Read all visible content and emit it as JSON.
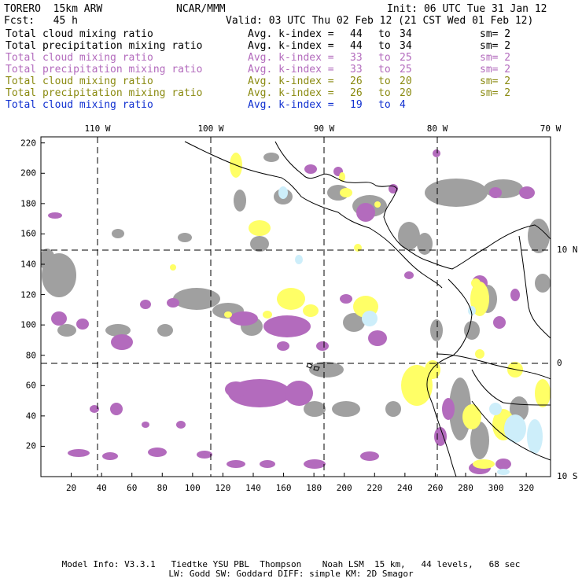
{
  "header": {
    "model": "TORERO  15km ARW",
    "center": "NCAR/MMM",
    "init": "Init: 06 UTC Tue 31 Jan 12",
    "fcst": "Fcst:   45 h",
    "valid": "Valid: 03 UTC Thu 02 Feb 12 (21 CST Wed 01 Feb 12)"
  },
  "legend": [
    {
      "field": "Total cloud mixing ratio",
      "avg": "Avg. k-index =",
      "from": "44",
      "to": "to",
      "end": "34",
      "sm": "sm= 2",
      "color": "#000000"
    },
    {
      "field": "Total precipitation mixing ratio",
      "avg": "Avg. k-index =",
      "from": "44",
      "to": "to",
      "end": "34",
      "sm": "sm= 2",
      "color": "#000000"
    },
    {
      "field": "Total cloud mixing ratio",
      "avg": "Avg. k-index =",
      "from": "33",
      "to": "to",
      "end": "25",
      "sm": "sm= 2",
      "color": "#b36bbd"
    },
    {
      "field": "Total precipitation mixing ratio",
      "avg": "Avg. k-index =",
      "from": "33",
      "to": "to",
      "end": "25",
      "sm": "sm= 2",
      "color": "#b36bbd"
    },
    {
      "field": "Total cloud mixing ratio",
      "avg": "Avg. k-index =",
      "from": "26",
      "to": "to",
      "end": "20",
      "sm": "sm= 2",
      "color": "#8a8a10"
    },
    {
      "field": "Total precipitation mixing ratio",
      "avg": "Avg. k-index =",
      "from": "26",
      "to": "to",
      "end": "20",
      "sm": "sm= 2",
      "color": "#8a8a10"
    },
    {
      "field": "Total cloud mixing ratio",
      "avg": "Avg. k-index =",
      "from": "19",
      "to": "to",
      "end": "4",
      "sm": "",
      "color": "#1030d0"
    }
  ],
  "axes": {
    "lon_labels": [
      "110 W",
      "100 W",
      "90 W",
      "80 W",
      "70 W"
    ],
    "lat_labels": [
      "10 N",
      "0",
      "10 S"
    ],
    "x_ticks": [
      "20",
      "40",
      "60",
      "80",
      "100",
      "120",
      "140",
      "160",
      "180",
      "200",
      "220",
      "240",
      "260",
      "280",
      "300",
      "320"
    ],
    "y_ticks": [
      "20",
      "40",
      "60",
      "80",
      "100",
      "120",
      "140",
      "160",
      "180",
      "200",
      "220"
    ],
    "grid_range_x": [
      0,
      336
    ],
    "grid_range_y": [
      0,
      224
    ]
  },
  "colors": {
    "gray": "#a0a0a0",
    "purple": "#b36bbd",
    "yellow": "#ffff66",
    "lightblue": "#cdeefa",
    "coast": "#000000"
  },
  "footer": {
    "line1": "Model Info: V3.3.1   Tiedtke YSU PBL  Thompson    Noah LSM  15 km,   44 levels,   68 sec",
    "line2": "LW: Godd SW: Goddard DIFF: simple KM: 2D Smagor"
  }
}
